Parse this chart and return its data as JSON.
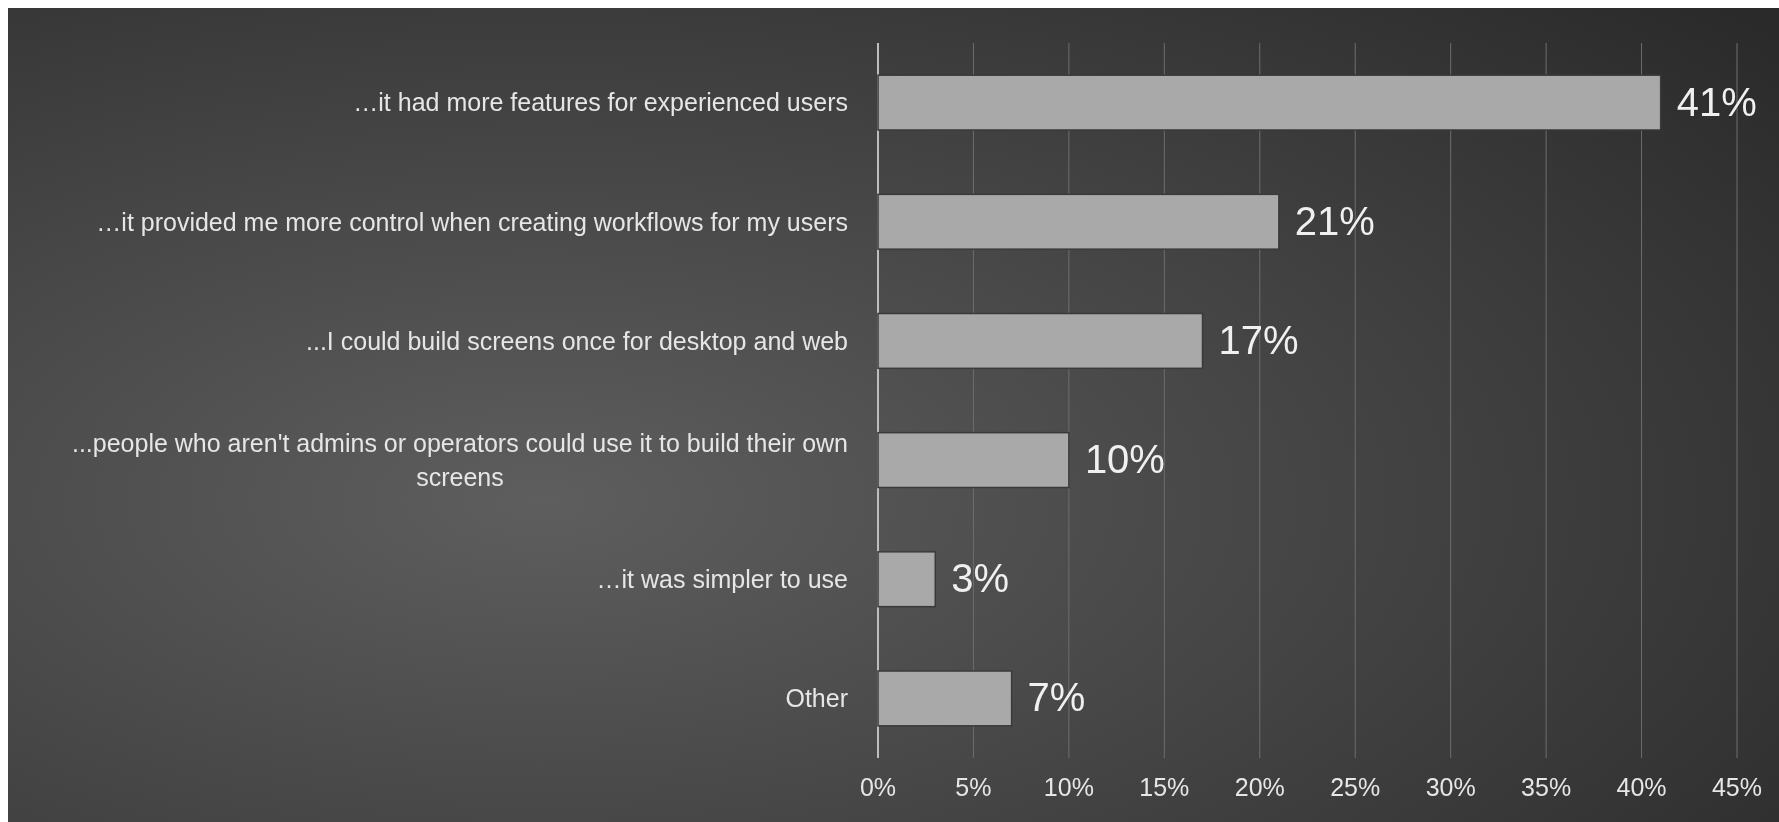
{
  "chart_data": {
    "type": "bar",
    "orientation": "horizontal",
    "categories": [
      "…it had more features for experienced users",
      "…it provided me more control when creating workflows for my users",
      "...I could build screens once for desktop and web",
      "...people who aren't admins or operators could use it to build their own screens",
      "…it was simpler to use",
      "Other"
    ],
    "values": [
      41,
      21,
      17,
      10,
      3,
      7
    ],
    "value_labels": [
      "41%",
      "21%",
      "17%",
      "10%",
      "3%",
      "7%"
    ],
    "color": "#a9a9a9",
    "xlim": [
      0,
      45
    ],
    "xticks": [
      {
        "value": 0,
        "label": "0%"
      },
      {
        "value": 5,
        "label": "5%"
      },
      {
        "value": 10,
        "label": "10%"
      },
      {
        "value": 15,
        "label": "15%"
      },
      {
        "value": 20,
        "label": "20%"
      },
      {
        "value": 25,
        "label": "25%"
      },
      {
        "value": 30,
        "label": "30%"
      },
      {
        "value": 35,
        "label": "35%"
      },
      {
        "value": 40,
        "label": "40%"
      },
      {
        "value": 45,
        "label": "45%"
      }
    ],
    "grid": "x"
  }
}
